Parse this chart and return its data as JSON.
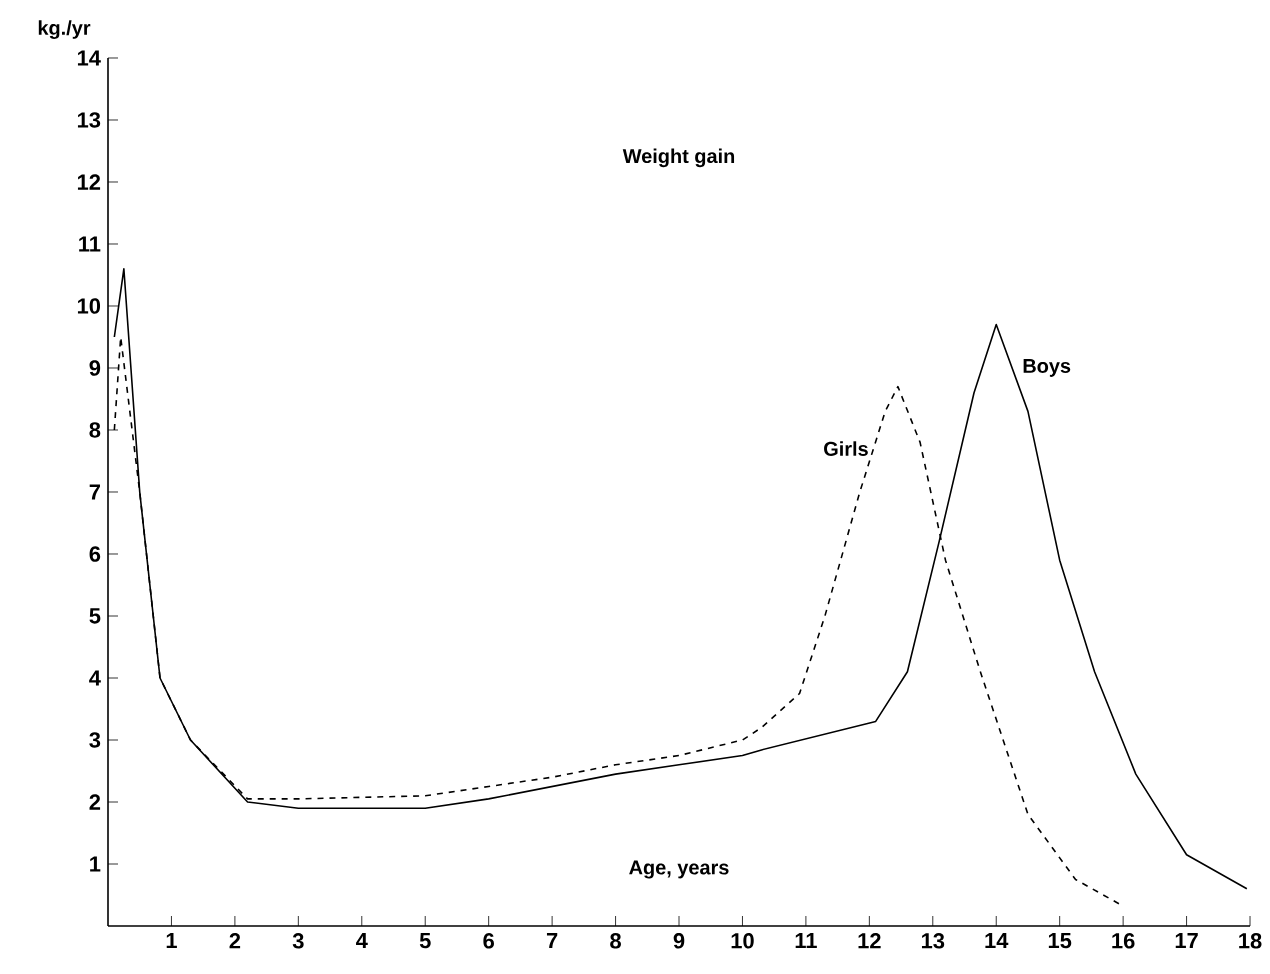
{
  "chart_data": {
    "type": "line",
    "title": "Weight gain",
    "xlabel": "Age, years",
    "ylabel": "kg./yr",
    "xlim": [
      0,
      18
    ],
    "xticks": [
      1,
      2,
      3,
      4,
      5,
      6,
      7,
      8,
      9,
      10,
      11,
      12,
      13,
      14,
      15,
      16,
      17,
      18
    ],
    "ylim": [
      0,
      14
    ],
    "yticks": [
      1,
      2,
      3,
      4,
      5,
      6,
      7,
      8,
      9,
      10,
      11,
      12,
      13,
      14
    ],
    "grid": false,
    "legend": false,
    "marker": "none",
    "series": [
      {
        "name": "Girls",
        "color": "#000000",
        "line_style": "dashed",
        "x": [
          0.1,
          0.2,
          0.5,
          0.82,
          1.3,
          2.2,
          3,
          5,
          6,
          7,
          8,
          9,
          10,
          10.3,
          10.9,
          11.3,
          11.85,
          12.25,
          12.45,
          12.8,
          13.2,
          13.75,
          14.5,
          15.25,
          15.95
        ],
        "values": [
          8.0,
          9.5,
          7.0,
          4.0,
          3.0,
          2.05,
          2.05,
          2.1,
          2.25,
          2.4,
          2.6,
          2.75,
          3.0,
          3.2,
          3.75,
          5.0,
          7.0,
          8.3,
          8.7,
          7.8,
          5.9,
          4.1,
          1.8,
          0.75,
          0.35
        ]
      },
      {
        "name": "Boys",
        "color": "#000000",
        "line_style": "solid",
        "x": [
          0.1,
          0.25,
          0.5,
          0.82,
          1.3,
          2.2,
          3,
          5,
          6,
          7,
          8,
          9,
          10,
          10.3,
          12.1,
          12.6,
          13.1,
          13.65,
          14.0,
          14.5,
          15.0,
          15.55,
          16.2,
          17.0,
          17.95
        ],
        "values": [
          9.5,
          10.6,
          7.0,
          4.0,
          3.0,
          2.0,
          1.9,
          1.9,
          2.05,
          2.25,
          2.45,
          2.6,
          2.75,
          2.84,
          3.3,
          4.1,
          6.2,
          8.6,
          9.7,
          8.3,
          5.9,
          4.1,
          2.45,
          1.15,
          0.6
        ]
      }
    ]
  }
}
